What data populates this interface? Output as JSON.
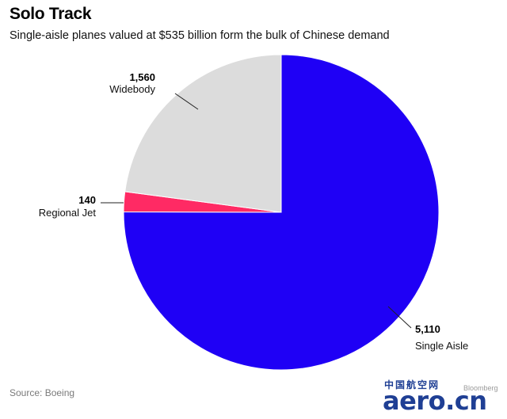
{
  "header": {
    "title": "Solo Track",
    "subtitle": "Single-aisle planes valued at $535 billion form the bulk of Chinese demand"
  },
  "footer": {
    "source": "Source: Boeing"
  },
  "watermark": {
    "chinese": "中国航空网",
    "brand": "aero.cn",
    "sub": "Bloomberg"
  },
  "chart_data": {
    "type": "pie",
    "title": "Solo Track",
    "subtitle": "Single-aisle planes valued at $535 billion form the bulk of Chinese demand",
    "start_angle": "12 o'clock, clockwise",
    "slices": [
      {
        "label": "Single Aisle",
        "value": 5110,
        "value_label": "5,110",
        "color": "#1f00f5"
      },
      {
        "label": "Regional Jet",
        "value": 140,
        "value_label": "140",
        "color": "#ff2a64"
      },
      {
        "label": "Widebody",
        "value": 1560,
        "value_label": "1,560",
        "color": "#dcdcdc"
      }
    ],
    "slice_outline_color": "#ffffff",
    "leader_line_color": "#222222"
  }
}
